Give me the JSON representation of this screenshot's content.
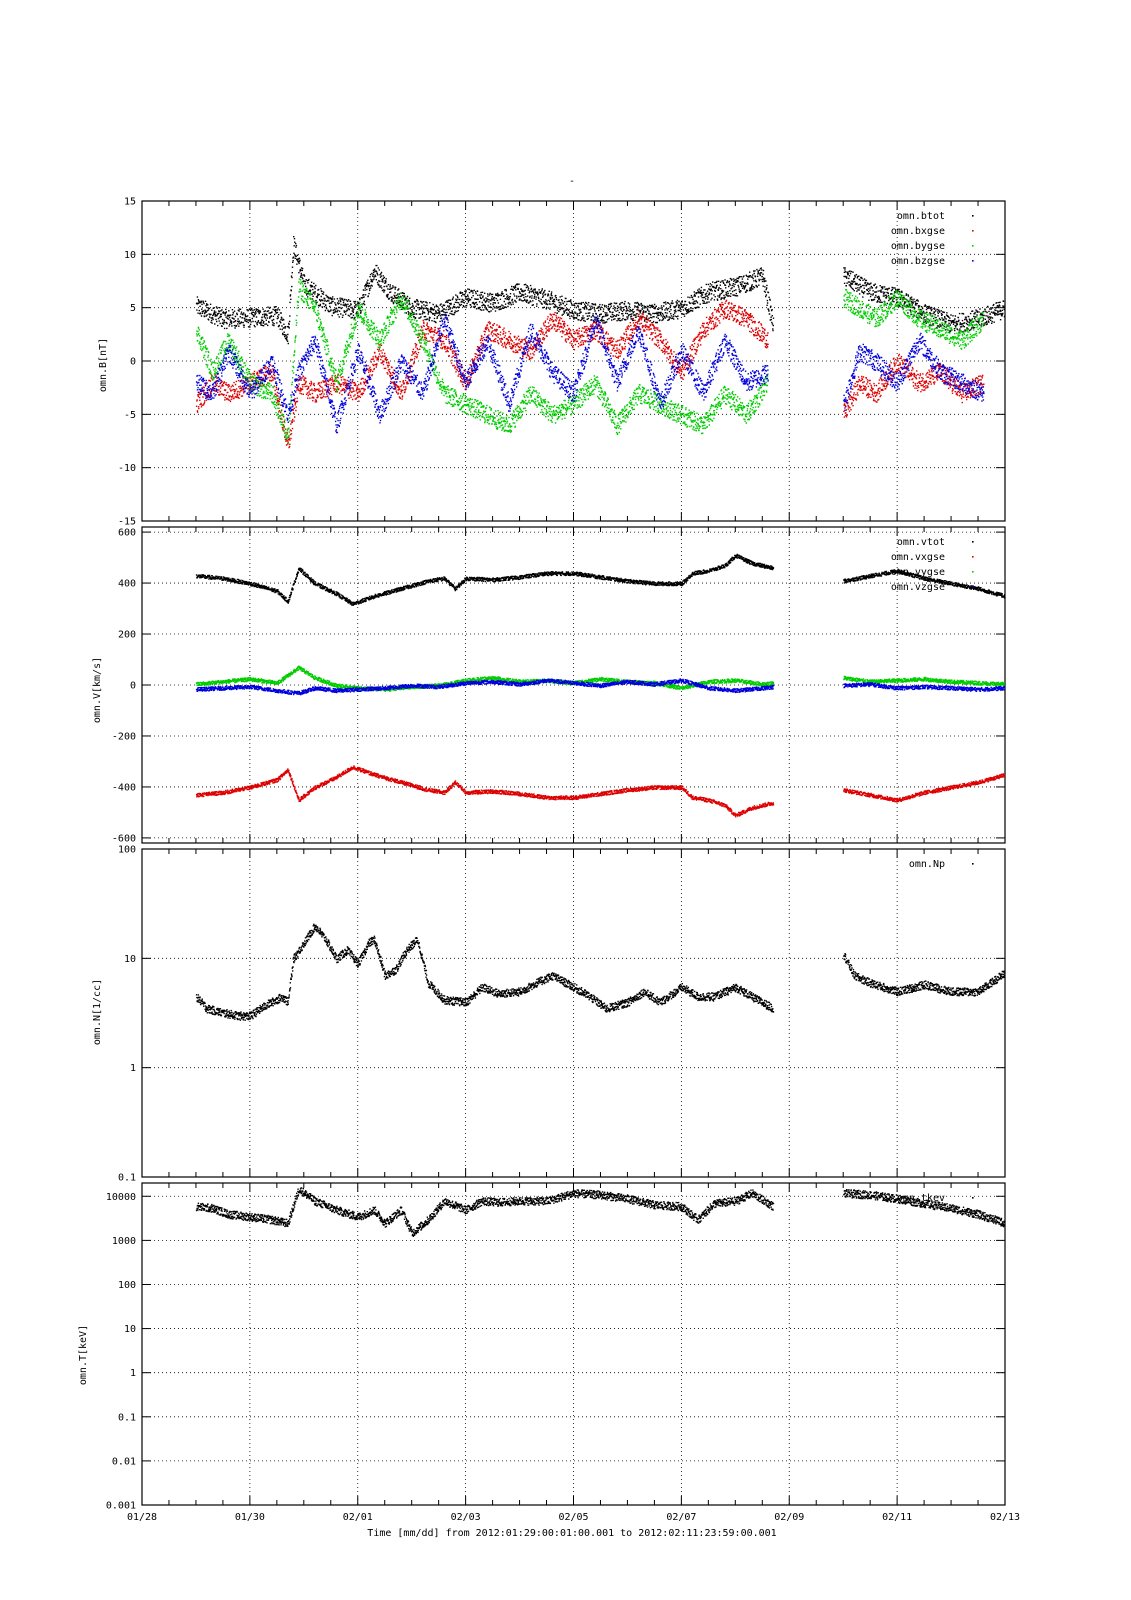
{
  "figure": {
    "title_mark": "-",
    "xlabel": "Time [mm/dd]  from 2012:01:29:00:01:00.001  to  2012:02:11:23:59:00.001",
    "x_ticks": [
      {
        "day": 0,
        "label": "01/28"
      },
      {
        "day": 2,
        "label": "01/30"
      },
      {
        "day": 4,
        "label": "02/01"
      },
      {
        "day": 6,
        "label": "02/03"
      },
      {
        "day": 8,
        "label": "02/05"
      },
      {
        "day": 10,
        "label": "02/07"
      },
      {
        "day": 12,
        "label": "02/09"
      },
      {
        "day": 14,
        "label": "02/11"
      },
      {
        "day": 16,
        "label": "02/13"
      }
    ]
  },
  "colors": {
    "black": "#000000",
    "red": "#dd0000",
    "green": "#00cc00",
    "blue": "#0000dd"
  },
  "chart_data": [
    {
      "type": "scatter",
      "ylabel": "omn.B[nT]",
      "xlim_days": [
        0,
        16
      ],
      "ylim": [
        -15,
        15
      ],
      "yscale": "linear",
      "y_ticks": [
        "15",
        "10",
        "5",
        "0",
        "-5",
        "-10",
        "-15"
      ],
      "y_tick_values": [
        15,
        10,
        5,
        0,
        -5,
        -10,
        -15
      ],
      "grid": true,
      "legend_position": "top-right",
      "series": [
        {
          "name": "omn.btot",
          "color": "#000000",
          "x": [
            1.0,
            1.5,
            2.0,
            2.5,
            2.7,
            2.8,
            3.0,
            3.5,
            4.0,
            4.3,
            4.6,
            5.0,
            5.5,
            6.0,
            6.5,
            7.0,
            7.5,
            8.0,
            8.5,
            9.0,
            9.5,
            10.0,
            10.5,
            11.0,
            11.5,
            11.7,
            13.0,
            13.5,
            14.0,
            14.5,
            15.0,
            15.5,
            16.0
          ],
          "y": [
            5.2,
            4.0,
            4.1,
            4.3,
            2.5,
            11,
            7.2,
            5.2,
            4.8,
            8.5,
            6.5,
            5.0,
            4.5,
            6.0,
            5.5,
            6.5,
            5.8,
            4.8,
            4.5,
            4.8,
            4.5,
            5.0,
            6.5,
            7.0,
            8.0,
            3.3,
            8.0,
            6.5,
            6.0,
            4.5,
            3.5,
            4.0,
            5.0
          ]
        },
        {
          "name": "omn.bxgse",
          "color": "#dd0000",
          "x": [
            1.0,
            1.3,
            1.6,
            2.0,
            2.4,
            2.7,
            2.9,
            3.2,
            3.6,
            4.0,
            4.4,
            4.8,
            5.2,
            5.6,
            6.0,
            6.4,
            6.8,
            7.2,
            7.6,
            8.0,
            8.4,
            8.8,
            9.2,
            9.6,
            10.0,
            10.4,
            10.8,
            11.2,
            11.6,
            13.0,
            13.3,
            13.6,
            14.0,
            14.4,
            14.8,
            15.2,
            15.6
          ],
          "y": [
            -4,
            -2,
            -3,
            -2,
            -1,
            -8,
            -2,
            -3,
            -2,
            -3,
            1,
            -3,
            3,
            2,
            -2,
            3,
            2,
            1,
            4,
            2,
            3,
            1,
            4,
            2,
            -1,
            3,
            5,
            4,
            2,
            -5,
            -2,
            -3,
            0,
            -2,
            -1,
            -3,
            -2
          ]
        },
        {
          "name": "omn.bygse",
          "color": "#00cc00",
          "x": [
            1.0,
            1.3,
            1.6,
            2.0,
            2.4,
            2.7,
            2.9,
            3.2,
            3.6,
            4.0,
            4.4,
            4.8,
            5.2,
            5.6,
            6.0,
            6.4,
            6.8,
            7.2,
            7.6,
            8.0,
            8.4,
            8.8,
            9.2,
            9.6,
            10.0,
            10.4,
            10.8,
            11.2,
            11.6,
            13.0,
            13.3,
            13.6,
            14.0,
            14.4,
            14.8,
            15.2,
            15.6
          ],
          "y": [
            3,
            -1,
            2,
            -2,
            -3,
            -7,
            7,
            5,
            -2,
            5,
            2,
            6,
            2,
            -3,
            -4,
            -5,
            -6,
            -3,
            -5,
            -4,
            -2,
            -6,
            -3,
            -4,
            -5,
            -6,
            -3,
            -5,
            -2,
            6,
            5,
            4,
            6,
            4,
            3,
            2,
            4
          ]
        },
        {
          "name": "omn.bzgse",
          "color": "#0000dd",
          "x": [
            1.0,
            1.3,
            1.6,
            2.0,
            2.4,
            2.7,
            2.9,
            3.2,
            3.6,
            4.0,
            4.4,
            4.8,
            5.2,
            5.6,
            6.0,
            6.4,
            6.8,
            7.2,
            7.6,
            8.0,
            8.4,
            8.8,
            9.2,
            9.6,
            10.0,
            10.4,
            10.8,
            11.2,
            11.6,
            13.0,
            13.3,
            13.6,
            14.0,
            14.4,
            14.8,
            15.2,
            15.6
          ],
          "y": [
            -2,
            -3,
            1,
            -3,
            0,
            -5,
            -1,
            2,
            -6,
            1,
            -5,
            0,
            -3,
            4,
            -2,
            2,
            -4,
            3,
            -1,
            -3,
            4,
            -2,
            3,
            -4,
            1,
            -3,
            2,
            -2,
            -1,
            -4,
            1,
            0,
            -2,
            2,
            -1,
            -2,
            -3
          ]
        }
      ]
    },
    {
      "type": "scatter",
      "ylabel": "omn.V[km/s]",
      "xlim_days": [
        0,
        16
      ],
      "ylim": [
        -620,
        620
      ],
      "yscale": "linear",
      "y_ticks": [
        "600",
        "400",
        "200",
        "0",
        "-200",
        "-400",
        "-600"
      ],
      "y_tick_values": [
        600,
        400,
        200,
        0,
        -200,
        -400,
        -600
      ],
      "grid": true,
      "legend_position": "top-right",
      "series": [
        {
          "name": "omn.vtot",
          "color": "#000000",
          "x": [
            1.0,
            1.5,
            2.0,
            2.5,
            2.7,
            2.9,
            3.2,
            3.6,
            3.9,
            4.3,
            4.8,
            5.3,
            5.6,
            5.8,
            6.0,
            6.5,
            7.0,
            7.5,
            8.0,
            8.5,
            9.0,
            9.5,
            10.0,
            10.2,
            10.5,
            10.8,
            11.0,
            11.3,
            11.7,
            13.0,
            13.5,
            14.0,
            14.5,
            15.0,
            15.5,
            16.0
          ],
          "y": [
            430,
            420,
            400,
            370,
            330,
            460,
            400,
            360,
            320,
            350,
            380,
            410,
            420,
            380,
            420,
            415,
            425,
            440,
            440,
            425,
            410,
            400,
            400,
            440,
            450,
            470,
            510,
            480,
            460,
            410,
            430,
            450,
            420,
            400,
            380,
            350
          ]
        },
        {
          "name": "omn.vxgse",
          "color": "#dd0000",
          "x": [
            1.0,
            1.5,
            2.0,
            2.5,
            2.7,
            2.9,
            3.2,
            3.6,
            3.9,
            4.3,
            4.8,
            5.3,
            5.6,
            5.8,
            6.0,
            6.5,
            7.0,
            7.5,
            8.0,
            8.5,
            9.0,
            9.5,
            10.0,
            10.2,
            10.5,
            10.8,
            11.0,
            11.3,
            11.7,
            13.0,
            13.5,
            14.0,
            14.5,
            15.0,
            15.5,
            16.0
          ],
          "y": [
            -430,
            -420,
            -400,
            -370,
            -330,
            -450,
            -400,
            -360,
            -320,
            -350,
            -380,
            -410,
            -420,
            -380,
            -420,
            -415,
            -425,
            -440,
            -440,
            -425,
            -410,
            -400,
            -400,
            -440,
            -450,
            -470,
            -510,
            -480,
            -460,
            -410,
            -430,
            -450,
            -420,
            -400,
            -380,
            -350
          ]
        },
        {
          "name": "omn.vygse",
          "color": "#00cc00",
          "x": [
            1.0,
            1.5,
            2.0,
            2.5,
            2.9,
            3.2,
            3.6,
            4.0,
            4.5,
            5.0,
            5.5,
            6.0,
            6.5,
            7.0,
            7.5,
            8.0,
            8.5,
            9.0,
            9.5,
            10.0,
            10.5,
            11.0,
            11.5,
            11.7,
            13.0,
            13.5,
            14.0,
            14.5,
            15.0,
            15.5,
            16.0
          ],
          "y": [
            5,
            15,
            25,
            10,
            70,
            30,
            0,
            -10,
            -15,
            -5,
            0,
            20,
            30,
            15,
            20,
            10,
            25,
            15,
            10,
            -10,
            15,
            20,
            5,
            10,
            30,
            15,
            20,
            25,
            15,
            10,
            5
          ]
        },
        {
          "name": "omn.vzgse",
          "color": "#0000dd",
          "x": [
            1.0,
            1.5,
            2.0,
            2.5,
            2.9,
            3.2,
            3.6,
            4.0,
            4.5,
            5.0,
            5.5,
            6.0,
            6.5,
            7.0,
            7.5,
            8.0,
            8.5,
            9.0,
            9.5,
            10.0,
            10.5,
            11.0,
            11.5,
            11.7,
            13.0,
            13.5,
            14.0,
            14.5,
            15.0,
            15.5,
            16.0
          ],
          "y": [
            -15,
            -10,
            -5,
            -20,
            -30,
            -10,
            -20,
            -15,
            -10,
            0,
            -5,
            10,
            15,
            5,
            20,
            10,
            0,
            15,
            5,
            20,
            -10,
            -20,
            -10,
            -5,
            0,
            5,
            -10,
            -5,
            -10,
            -15,
            -10
          ]
        }
      ]
    },
    {
      "type": "scatter",
      "ylabel": "omn.N[1/cc]",
      "xlim_days": [
        0,
        16
      ],
      "ylim": [
        0.1,
        100
      ],
      "yscale": "log",
      "y_ticks": [
        "100",
        "10",
        "1",
        "0.1"
      ],
      "y_tick_values": [
        100,
        10,
        1,
        0.1
      ],
      "grid": true,
      "legend_position": "top-right",
      "series": [
        {
          "name": "omn.Np",
          "color": "#000000",
          "x": [
            1.0,
            1.2,
            1.5,
            1.8,
            2.0,
            2.3,
            2.6,
            2.7,
            2.8,
            3.0,
            3.2,
            3.4,
            3.6,
            3.8,
            4.0,
            4.2,
            4.3,
            4.5,
            4.7,
            4.9,
            5.1,
            5.3,
            5.6,
            6.0,
            6.3,
            6.6,
            7.0,
            7.3,
            7.6,
            8.0,
            8.3,
            8.6,
            9.0,
            9.3,
            9.6,
            10.0,
            10.3,
            10.6,
            11.0,
            11.3,
            11.7,
            13.0,
            13.2,
            13.5,
            14.0,
            14.5,
            15.0,
            15.5,
            16.0
          ],
          "y": [
            4.5,
            3.5,
            3.2,
            3.0,
            3.0,
            3.8,
            4.5,
            4.0,
            10,
            14,
            20,
            15,
            10,
            12,
            9,
            14,
            15,
            7,
            8,
            12,
            15,
            6,
            4.2,
            4.0,
            5.5,
            4.8,
            5.0,
            6.0,
            7.0,
            5.5,
            4.5,
            3.5,
            4.0,
            5.0,
            4.0,
            5.5,
            4.5,
            4.5,
            5.5,
            4.5,
            3.5,
            11,
            7.0,
            6.0,
            5.0,
            5.8,
            5.0,
            5.0,
            7.5
          ]
        }
      ]
    },
    {
      "type": "scatter",
      "ylabel": "omn.T[keV]",
      "xlim_days": [
        0,
        16
      ],
      "ylim": [
        0.001,
        20000
      ],
      "yscale": "log",
      "y_ticks": [
        "10000",
        "1000",
        "100",
        "10",
        "1",
        "0.1",
        "0.01",
        "0.001"
      ],
      "y_tick_values": [
        10000,
        1000,
        100,
        10,
        1,
        0.1,
        0.01,
        0.001
      ],
      "grid": true,
      "legend_position": "top-right",
      "series": [
        {
          "name": "omn.tkev",
          "color": "#000000",
          "x": [
            1.0,
            1.3,
            1.6,
            2.0,
            2.4,
            2.7,
            2.9,
            3.2,
            3.6,
            4.0,
            4.3,
            4.5,
            4.8,
            5.0,
            5.3,
            5.6,
            6.0,
            6.3,
            6.6,
            7.0,
            7.5,
            8.0,
            8.5,
            9.0,
            9.5,
            10.0,
            10.3,
            10.6,
            11.0,
            11.3,
            11.7,
            13.0,
            13.5,
            14.0,
            14.5,
            15.0,
            15.5,
            16.0
          ],
          "y": [
            6000,
            5500,
            4000,
            3500,
            3000,
            2500,
            15000,
            8000,
            5000,
            3500,
            5000,
            2500,
            5000,
            1500,
            3000,
            8000,
            5000,
            8000,
            7500,
            8000,
            8000,
            12000,
            11000,
            9000,
            6500,
            6000,
            3000,
            7000,
            8000,
            12000,
            6000,
            12000,
            11000,
            9000,
            7000,
            5500,
            4000,
            2500
          ]
        }
      ]
    }
  ]
}
